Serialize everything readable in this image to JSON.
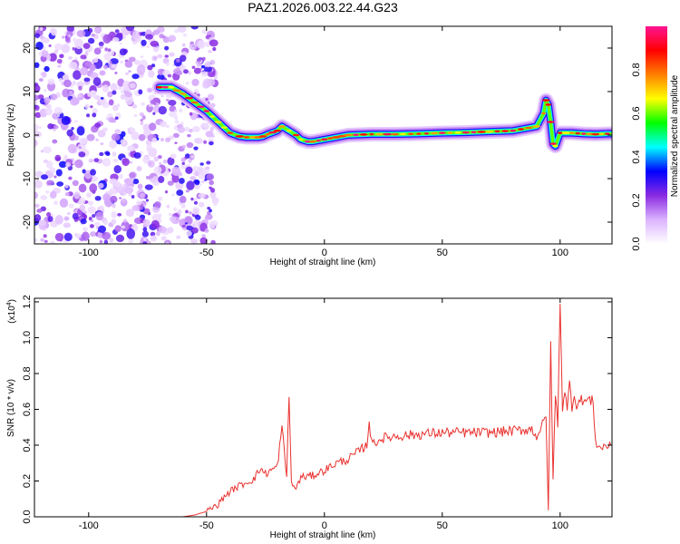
{
  "figure": {
    "title": "PAZ1.2026.003.22.44.G23"
  },
  "chart_data": [
    {
      "type": "heatmap",
      "description_of_marks": "spectrogram of received GNSS radio-occultation signal",
      "xlabel": "Height of straight line (km)",
      "ylabel": "Frequency (Hz)",
      "xlim": [
        -123,
        122
      ],
      "ylim": [
        -25,
        25
      ],
      "xticks": [
        -100,
        -50,
        0,
        50,
        100
      ],
      "xtick_labels": [
        "-100",
        "-50",
        "0",
        "50",
        "100"
      ],
      "yticks": [
        -20,
        -10,
        0,
        10,
        20
      ],
      "ytick_labels": [
        "-20",
        "-10",
        "0",
        "10",
        "20"
      ],
      "colorbar": {
        "label": "Normalized spectral amplitude",
        "range": [
          0.0,
          1.0
        ],
        "ticks": [
          0.0,
          0.2,
          0.4,
          0.6,
          0.8
        ],
        "tick_labels": [
          "0.0",
          "0.2",
          "0.4",
          "0.6",
          "0.8"
        ],
        "colors": [
          "#ffffff",
          "#dcb4ff",
          "#8a2be2",
          "#0000ff",
          "#00ffff",
          "#00ff00",
          "#ffff00",
          "#ff8000",
          "#ff0000",
          "#ff1493"
        ]
      },
      "noise_region_x": [
        -123,
        -50
      ],
      "ridge": {
        "x": [
          -70,
          -65,
          -60,
          -55,
          -50,
          -45,
          -40,
          -36,
          -33,
          -30,
          -28,
          -26,
          -24,
          -22,
          -20,
          -18,
          -15,
          -12,
          -10,
          -7,
          -5,
          0,
          5,
          10,
          20,
          30,
          40,
          50,
          60,
          70,
          80,
          90,
          93,
          94,
          95,
          96,
          97,
          98,
          100,
          105,
          110,
          115,
          120,
          122
        ],
        "y": [
          11,
          11,
          9.5,
          7.5,
          5.5,
          3,
          0.5,
          -0.3,
          -0.5,
          -0.5,
          -0.5,
          -0.3,
          0.2,
          0.6,
          1,
          2,
          1,
          0,
          -1,
          -1.5,
          -1.5,
          -1,
          -0.5,
          0,
          0.2,
          0.2,
          0.3,
          0.5,
          0.6,
          0.8,
          1,
          2,
          5,
          8,
          7,
          3,
          -2,
          -2.5,
          0.5,
          0.5,
          0.3,
          0.2,
          0.3,
          0.3
        ],
        "peak_amplitude": 1.0
      }
    },
    {
      "type": "line",
      "xlabel": "Height of straight line (km)",
      "ylabel": "SNR (10 * v/v)",
      "y_multiplier": "(x10^4)",
      "y_multiplier_base": "(x10",
      "y_multiplier_exp": "4",
      "y_multiplier_close": ")",
      "xlim": [
        -123,
        122
      ],
      "ylim": [
        0,
        1.22
      ],
      "xticks": [
        -100,
        -50,
        0,
        50,
        100
      ],
      "xtick_labels": [
        "-100",
        "-50",
        "0",
        "50",
        "100"
      ],
      "yticks": [
        0,
        0.2,
        0.4,
        0.6,
        0.8,
        1.0,
        1.2
      ],
      "ytick_labels": [
        "0.0",
        "0.2",
        "0.4",
        "0.6",
        "0.8",
        "1.0",
        "1.2"
      ],
      "line_color": "#e8322f",
      "series": [
        {
          "x": [
            -123,
            -60,
            -55,
            -50,
            -45,
            -42,
            -40,
            -38,
            -35,
            -30,
            -27,
            -25,
            -20,
            -18,
            -16,
            -15,
            -14,
            -12,
            -10,
            -5,
            0,
            5,
            10,
            15,
            18,
            19,
            20,
            22,
            25,
            30,
            40,
            50,
            60,
            70,
            80,
            88,
            90,
            92,
            94,
            95,
            96,
            97,
            98,
            99,
            100,
            101,
            102,
            103,
            104,
            105,
            106,
            107,
            108,
            109,
            110,
            111,
            112,
            113,
            114,
            115,
            117,
            119,
            121,
            122
          ],
          "y": [
            0.0,
            0.0,
            0.01,
            0.03,
            0.07,
            0.12,
            0.14,
            0.16,
            0.18,
            0.21,
            0.27,
            0.24,
            0.28,
            0.5,
            0.22,
            0.7,
            0.18,
            0.16,
            0.22,
            0.23,
            0.26,
            0.3,
            0.32,
            0.37,
            0.4,
            0.54,
            0.41,
            0.42,
            0.44,
            0.45,
            0.46,
            0.47,
            0.47,
            0.47,
            0.48,
            0.49,
            0.45,
            0.5,
            0.55,
            0.05,
            0.95,
            0.2,
            0.7,
            0.5,
            1.22,
            0.6,
            0.72,
            0.58,
            0.75,
            0.62,
            0.68,
            0.63,
            0.64,
            0.65,
            0.66,
            0.64,
            0.66,
            0.64,
            0.65,
            0.42,
            0.38,
            0.4,
            0.39,
            0.4
          ]
        }
      ]
    }
  ]
}
